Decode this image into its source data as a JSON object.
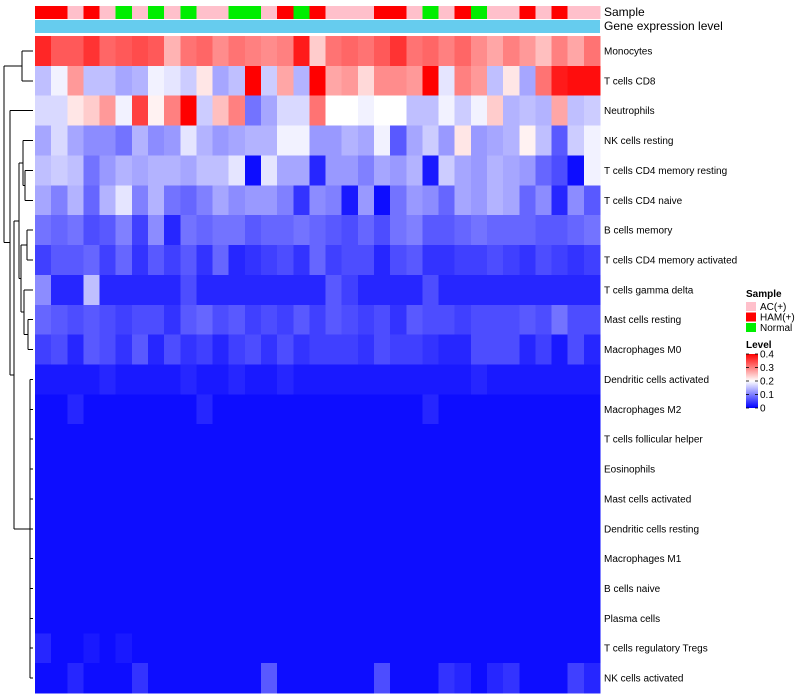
{
  "chart_data": {
    "type": "heatmap",
    "annotation_labels": {
      "sample": "Sample",
      "expression": "Gene expression level"
    },
    "sample_groups": [
      "HAM(+)",
      "HAM(+)",
      "AC(+)",
      "HAM(+)",
      "AC(+)",
      "Normal",
      "AC(+)",
      "Normal",
      "AC(+)",
      "Normal",
      "AC(+)",
      "AC(+)",
      "Normal",
      "Normal",
      "AC(+)",
      "HAM(+)",
      "Normal",
      "HAM(+)",
      "AC(+)",
      "AC(+)",
      "AC(+)",
      "HAM(+)",
      "HAM(+)",
      "AC(+)",
      "Normal",
      "AC(+)",
      "HAM(+)",
      "Normal",
      "AC(+)",
      "AC(+)",
      "HAM(+)",
      "AC(+)",
      "HAM(+)",
      "AC(+)",
      "AC(+)"
    ],
    "group_colors": {
      "AC(+)": "#FFC0CB",
      "HAM(+)": "#FF0000",
      "Normal": "#00EE00"
    },
    "expression_bar_color": "#66CCEE",
    "rows": [
      "Monocytes",
      "T cells CD8",
      "Neutrophils",
      "NK cells resting",
      "T cells CD4 memory resting",
      "T cells CD4 naive",
      "B cells memory",
      "T cells CD4 memory activated",
      "T cells gamma delta",
      "Mast cells resting",
      "Macrophages M0",
      "Dendritic cells activated",
      "Macrophages M2",
      "T cells follicular helper",
      "Eosinophils",
      "Mast cells activated",
      "Dendritic cells resting",
      "Macrophages M1",
      "B cells naive",
      "Plasma cells",
      "T cells regulatory  Tregs",
      "NK cells activated"
    ],
    "values": [
      [
        0.37,
        0.33,
        0.33,
        0.36,
        0.32,
        0.33,
        0.34,
        0.33,
        0.26,
        0.31,
        0.32,
        0.29,
        0.31,
        0.3,
        0.29,
        0.3,
        0.38,
        0.24,
        0.31,
        0.32,
        0.31,
        0.33,
        0.36,
        0.31,
        0.32,
        0.3,
        0.32,
        0.29,
        0.27,
        0.3,
        0.28,
        0.25,
        0.3,
        0.27,
        0.31
      ],
      [
        0.15,
        0.19,
        0.28,
        0.15,
        0.15,
        0.13,
        0.14,
        0.19,
        0.18,
        0.16,
        0.22,
        0.13,
        0.15,
        0.4,
        0.16,
        0.27,
        0.14,
        0.4,
        0.27,
        0.28,
        0.23,
        0.29,
        0.29,
        0.28,
        0.4,
        0.18,
        0.3,
        0.28,
        0.15,
        0.22,
        0.13,
        0.31,
        0.38,
        0.39,
        0.39
      ],
      [
        0.17,
        0.17,
        0.22,
        0.24,
        0.28,
        0.19,
        0.35,
        0.21,
        0.3,
        0.4,
        0.16,
        0.25,
        0.3,
        0.09,
        0.13,
        0.17,
        0.17,
        0.31,
        0.2,
        0.2,
        0.19,
        0.2,
        0.2,
        0.15,
        0.15,
        0.19,
        0.16,
        0.19,
        0.24,
        0.14,
        0.15,
        0.14,
        0.27,
        0.15,
        0.16
      ],
      [
        0.13,
        0.17,
        0.13,
        0.11,
        0.11,
        0.09,
        0.14,
        0.11,
        0.12,
        0.18,
        0.14,
        0.12,
        0.13,
        0.14,
        0.14,
        0.19,
        0.19,
        0.12,
        0.12,
        0.14,
        0.13,
        0.19,
        0.07,
        0.13,
        0.16,
        0.12,
        0.22,
        0.12,
        0.13,
        0.14,
        0.21,
        0.15,
        0.07,
        0.16,
        0.19
      ],
      [
        0.15,
        0.16,
        0.15,
        0.09,
        0.12,
        0.14,
        0.13,
        0.14,
        0.14,
        0.13,
        0.15,
        0.15,
        0.18,
        0.01,
        0.18,
        0.13,
        0.13,
        0.03,
        0.12,
        0.12,
        0.1,
        0.13,
        0.12,
        0.14,
        0.02,
        0.16,
        0.13,
        0.12,
        0.14,
        0.13,
        0.12,
        0.08,
        0.06,
        0.01,
        0.19
      ],
      [
        0.13,
        0.1,
        0.14,
        0.08,
        0.14,
        0.18,
        0.1,
        0.14,
        0.09,
        0.08,
        0.1,
        0.13,
        0.11,
        0.12,
        0.12,
        0.1,
        0.04,
        0.11,
        0.1,
        0.02,
        0.12,
        0.01,
        0.09,
        0.12,
        0.11,
        0.08,
        0.13,
        0.12,
        0.14,
        0.13,
        0.08,
        0.11,
        0.03,
        0.11,
        0.07
      ],
      [
        0.09,
        0.08,
        0.09,
        0.06,
        0.07,
        0.1,
        0.05,
        0.11,
        0.03,
        0.09,
        0.08,
        0.09,
        0.09,
        0.07,
        0.08,
        0.08,
        0.09,
        0.08,
        0.07,
        0.06,
        0.08,
        0.06,
        0.09,
        0.1,
        0.07,
        0.07,
        0.08,
        0.09,
        0.08,
        0.08,
        0.08,
        0.07,
        0.07,
        0.08,
        0.09
      ],
      [
        0.05,
        0.07,
        0.07,
        0.08,
        0.05,
        0.08,
        0.04,
        0.07,
        0.05,
        0.07,
        0.04,
        0.08,
        0.03,
        0.04,
        0.05,
        0.06,
        0.04,
        0.08,
        0.05,
        0.06,
        0.06,
        0.03,
        0.06,
        0.07,
        0.04,
        0.04,
        0.05,
        0.05,
        0.06,
        0.05,
        0.04,
        0.06,
        0.05,
        0.04,
        0.05
      ],
      [
        0.11,
        0.03,
        0.03,
        0.15,
        0.03,
        0.03,
        0.03,
        0.03,
        0.03,
        0.06,
        0.03,
        0.03,
        0.03,
        0.03,
        0.03,
        0.03,
        0.03,
        0.03,
        0.07,
        0.05,
        0.03,
        0.03,
        0.03,
        0.03,
        0.06,
        0.03,
        0.03,
        0.03,
        0.03,
        0.03,
        0.03,
        0.03,
        0.03,
        0.03,
        0.03
      ],
      [
        0.08,
        0.07,
        0.06,
        0.07,
        0.06,
        0.05,
        0.06,
        0.06,
        0.04,
        0.07,
        0.08,
        0.06,
        0.07,
        0.05,
        0.06,
        0.05,
        0.07,
        0.05,
        0.07,
        0.06,
        0.05,
        0.06,
        0.04,
        0.07,
        0.06,
        0.06,
        0.05,
        0.06,
        0.06,
        0.06,
        0.07,
        0.06,
        0.09,
        0.06,
        0.06
      ],
      [
        0.05,
        0.06,
        0.03,
        0.07,
        0.06,
        0.04,
        0.07,
        0.03,
        0.06,
        0.04,
        0.05,
        0.03,
        0.05,
        0.06,
        0.04,
        0.06,
        0.04,
        0.05,
        0.05,
        0.05,
        0.04,
        0.06,
        0.05,
        0.05,
        0.04,
        0.03,
        0.03,
        0.06,
        0.06,
        0.06,
        0.03,
        0.05,
        0.02,
        0.06,
        0.03
      ],
      [
        0.02,
        0.02,
        0.02,
        0.02,
        0.03,
        0.02,
        0.02,
        0.02,
        0.02,
        0.03,
        0.02,
        0.02,
        0.03,
        0.02,
        0.02,
        0.03,
        0.02,
        0.02,
        0.02,
        0.02,
        0.02,
        0.02,
        0.02,
        0.02,
        0.02,
        0.02,
        0.02,
        0.03,
        0.02,
        0.02,
        0.02,
        0.02,
        0.02,
        0.02,
        0.02
      ],
      [
        0.01,
        0.01,
        0.03,
        0.01,
        0.01,
        0.01,
        0.01,
        0.01,
        0.01,
        0.01,
        0.03,
        0.01,
        0.01,
        0.01,
        0.01,
        0.01,
        0.01,
        0.01,
        0.01,
        0.01,
        0.01,
        0.01,
        0.01,
        0.01,
        0.03,
        0.01,
        0.01,
        0.01,
        0.01,
        0.01,
        0.01,
        0.01,
        0.01,
        0.01,
        0.01
      ],
      [
        0.01,
        0.01,
        0.01,
        0.01,
        0.01,
        0.01,
        0.01,
        0.01,
        0.01,
        0.01,
        0.01,
        0.01,
        0.01,
        0.01,
        0.01,
        0.01,
        0.01,
        0.01,
        0.01,
        0.01,
        0.01,
        0.01,
        0.01,
        0.01,
        0.01,
        0.01,
        0.01,
        0.01,
        0.01,
        0.01,
        0.01,
        0.01,
        0.01,
        0.01,
        0.01
      ],
      [
        0.01,
        0.01,
        0.01,
        0.01,
        0.01,
        0.01,
        0.01,
        0.01,
        0.01,
        0.01,
        0.01,
        0.01,
        0.01,
        0.01,
        0.01,
        0.01,
        0.01,
        0.01,
        0.01,
        0.01,
        0.01,
        0.01,
        0.01,
        0.01,
        0.01,
        0.01,
        0.01,
        0.01,
        0.01,
        0.01,
        0.01,
        0.01,
        0.01,
        0.01,
        0.01
      ],
      [
        0.01,
        0.01,
        0.01,
        0.01,
        0.01,
        0.01,
        0.01,
        0.01,
        0.01,
        0.01,
        0.01,
        0.01,
        0.01,
        0.01,
        0.01,
        0.01,
        0.01,
        0.01,
        0.01,
        0.01,
        0.01,
        0.01,
        0.01,
        0.01,
        0.01,
        0.01,
        0.01,
        0.01,
        0.01,
        0.01,
        0.01,
        0.01,
        0.01,
        0.01,
        0.01
      ],
      [
        0.01,
        0.01,
        0.01,
        0.01,
        0.01,
        0.01,
        0.01,
        0.01,
        0.01,
        0.01,
        0.01,
        0.01,
        0.01,
        0.01,
        0.01,
        0.01,
        0.01,
        0.01,
        0.01,
        0.01,
        0.01,
        0.01,
        0.01,
        0.01,
        0.01,
        0.01,
        0.01,
        0.01,
        0.01,
        0.01,
        0.01,
        0.01,
        0.01,
        0.01,
        0.01
      ],
      [
        0.01,
        0.01,
        0.01,
        0.01,
        0.01,
        0.01,
        0.01,
        0.01,
        0.01,
        0.01,
        0.01,
        0.01,
        0.01,
        0.01,
        0.01,
        0.01,
        0.01,
        0.01,
        0.01,
        0.01,
        0.01,
        0.01,
        0.01,
        0.01,
        0.01,
        0.01,
        0.01,
        0.01,
        0.01,
        0.01,
        0.01,
        0.01,
        0.01,
        0.01,
        0.01
      ],
      [
        0.01,
        0.01,
        0.01,
        0.01,
        0.01,
        0.01,
        0.01,
        0.01,
        0.01,
        0.01,
        0.01,
        0.01,
        0.01,
        0.01,
        0.01,
        0.01,
        0.01,
        0.01,
        0.01,
        0.01,
        0.01,
        0.01,
        0.01,
        0.01,
        0.01,
        0.01,
        0.01,
        0.01,
        0.01,
        0.01,
        0.01,
        0.01,
        0.01,
        0.01,
        0.01
      ],
      [
        0.01,
        0.01,
        0.01,
        0.01,
        0.01,
        0.01,
        0.01,
        0.01,
        0.01,
        0.01,
        0.01,
        0.01,
        0.01,
        0.01,
        0.01,
        0.01,
        0.01,
        0.01,
        0.01,
        0.01,
        0.01,
        0.01,
        0.01,
        0.01,
        0.01,
        0.01,
        0.01,
        0.01,
        0.01,
        0.01,
        0.01,
        0.01,
        0.01,
        0.01,
        0.01
      ],
      [
        0.03,
        0.01,
        0.01,
        0.02,
        0.01,
        0.02,
        0.01,
        0.01,
        0.01,
        0.01,
        0.01,
        0.01,
        0.01,
        0.01,
        0.01,
        0.01,
        0.01,
        0.01,
        0.01,
        0.01,
        0.01,
        0.01,
        0.01,
        0.01,
        0.01,
        0.01,
        0.01,
        0.01,
        0.01,
        0.01,
        0.01,
        0.01,
        0.01,
        0.01,
        0.01
      ],
      [
        0.01,
        0.01,
        0.03,
        0.01,
        0.01,
        0.01,
        0.04,
        0.01,
        0.01,
        0.01,
        0.01,
        0.01,
        0.01,
        0.01,
        0.07,
        0.01,
        0.01,
        0.01,
        0.01,
        0.01,
        0.01,
        0.06,
        0.01,
        0.01,
        0.01,
        0.04,
        0.03,
        0.01,
        0.03,
        0.04,
        0.01,
        0.01,
        0.01,
        0.05,
        0.03
      ]
    ],
    "color_scale": {
      "min": 0,
      "max": 0.4,
      "low": "#0000FF",
      "mid": "#FFFFFF",
      "high": "#FF0000",
      "mid_value": 0.2
    },
    "legend": {
      "sample_title": "Sample",
      "sample_entries": [
        "AC(+)",
        "HAM(+)",
        "Normal"
      ],
      "level_title": "Level",
      "level_ticks": [
        "0.4",
        "0.3",
        "0.2",
        "0.1",
        "0"
      ]
    }
  }
}
